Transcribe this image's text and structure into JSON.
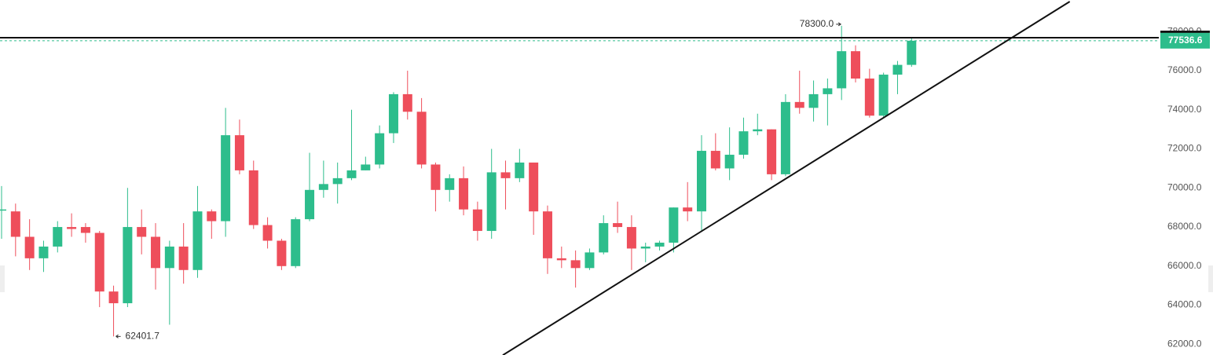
{
  "chart_data": {
    "type": "candlestick",
    "open": [
      68900,
      68800,
      67500,
      66400,
      67000,
      68000,
      68000,
      67700,
      64700,
      64100,
      68000,
      67500,
      65900,
      67000,
      65800,
      68800,
      68300,
      72700,
      70900,
      68100,
      67300,
      66000,
      68400,
      69900,
      70200,
      70500,
      70900,
      71200,
      72800,
      74800,
      73900,
      71200,
      69900,
      70500,
      68900,
      67800,
      70800,
      70500,
      71300,
      68800,
      66400,
      66300,
      65900,
      66700,
      68200,
      68000,
      66900,
      67000,
      67200,
      69000,
      68800,
      71900,
      71000,
      71700,
      72900,
      73000,
      70700,
      74400,
      74100,
      74800,
      75100,
      77000,
      75600,
      73700,
      75800,
      76300
    ],
    "high": [
      70100,
      69200,
      68400,
      67300,
      68300,
      68700,
      68200,
      67800,
      65000,
      70000,
      68900,
      68200,
      67300,
      68200,
      70100,
      68900,
      74100,
      73500,
      71400,
      68500,
      67400,
      68500,
      71800,
      71400,
      71300,
      74000,
      71600,
      73200,
      74900,
      76000,
      74600,
      71300,
      70700,
      71100,
      69300,
      72000,
      71400,
      72000,
      71300,
      69100,
      67000,
      66800,
      66900,
      68600,
      69300,
      68600,
      67200,
      67300,
      69000,
      70300,
      72700,
      72800,
      73100,
      73600,
      73800,
      73000,
      74800,
      76000,
      75500,
      75600,
      78300,
      77300,
      76100,
      75900,
      76500,
      77700
    ],
    "low": [
      67400,
      66500,
      65800,
      65700,
      66700,
      67500,
      67200,
      63900,
      62401.7,
      63900,
      66600,
      64800,
      63000,
      65100,
      65400,
      67400,
      67500,
      70700,
      67900,
      66900,
      65800,
      65900,
      68300,
      69500,
      69200,
      70400,
      70900,
      71000,
      72300,
      73500,
      71000,
      68800,
      69300,
      68600,
      67300,
      67400,
      68900,
      70300,
      67600,
      65600,
      65900,
      64900,
      65800,
      66600,
      67700,
      65800,
      66200,
      66800,
      66700,
      68300,
      67800,
      70900,
      70400,
      71500,
      72700,
      70400,
      70600,
      73800,
      73400,
      73200,
      74500,
      75400,
      73600,
      73600,
      74800,
      76200
    ],
    "close": [
      68900,
      67500,
      66400,
      67000,
      68000,
      67900,
      67700,
      64700,
      64100,
      68000,
      67500,
      65900,
      67000,
      65800,
      68800,
      68300,
      72700,
      70900,
      68100,
      67300,
      66000,
      68400,
      69900,
      70200,
      70500,
      70900,
      71200,
      72800,
      74800,
      73900,
      71200,
      69900,
      70500,
      68900,
      67800,
      70800,
      70500,
      71300,
      68800,
      66400,
      66300,
      65900,
      66700,
      68200,
      68000,
      66900,
      67000,
      67200,
      69000,
      68800,
      71900,
      71000,
      71700,
      72900,
      73000,
      70700,
      74400,
      74100,
      74800,
      75100,
      77000,
      75600,
      73700,
      75800,
      76300,
      77536.6
    ],
    "up_color": "#2dbd8c",
    "down_color": "#ee4e5b",
    "ylim": [
      61450,
      79620
    ],
    "yticks": [
      {
        "value": 62000,
        "label": "62000.0"
      },
      {
        "value": 64000,
        "label": "64000.0"
      },
      {
        "value": 66000,
        "label": "66000.0"
      },
      {
        "value": 68000,
        "label": "68000.0"
      },
      {
        "value": 70000,
        "label": "70000.0"
      },
      {
        "value": 72000,
        "label": "72000.0"
      },
      {
        "value": 74000,
        "label": "74000.0"
      },
      {
        "value": 76000,
        "label": "76000.0"
      },
      {
        "value": 78000,
        "label": "78000.0"
      }
    ],
    "max_label": "78300.0",
    "min_label": "62401.7",
    "last_price": 77536.6,
    "level_line": 77690,
    "trend_line": {
      "x": [
        35.8,
        76.3
      ],
      "y": [
        61440,
        79540
      ]
    }
  }
}
